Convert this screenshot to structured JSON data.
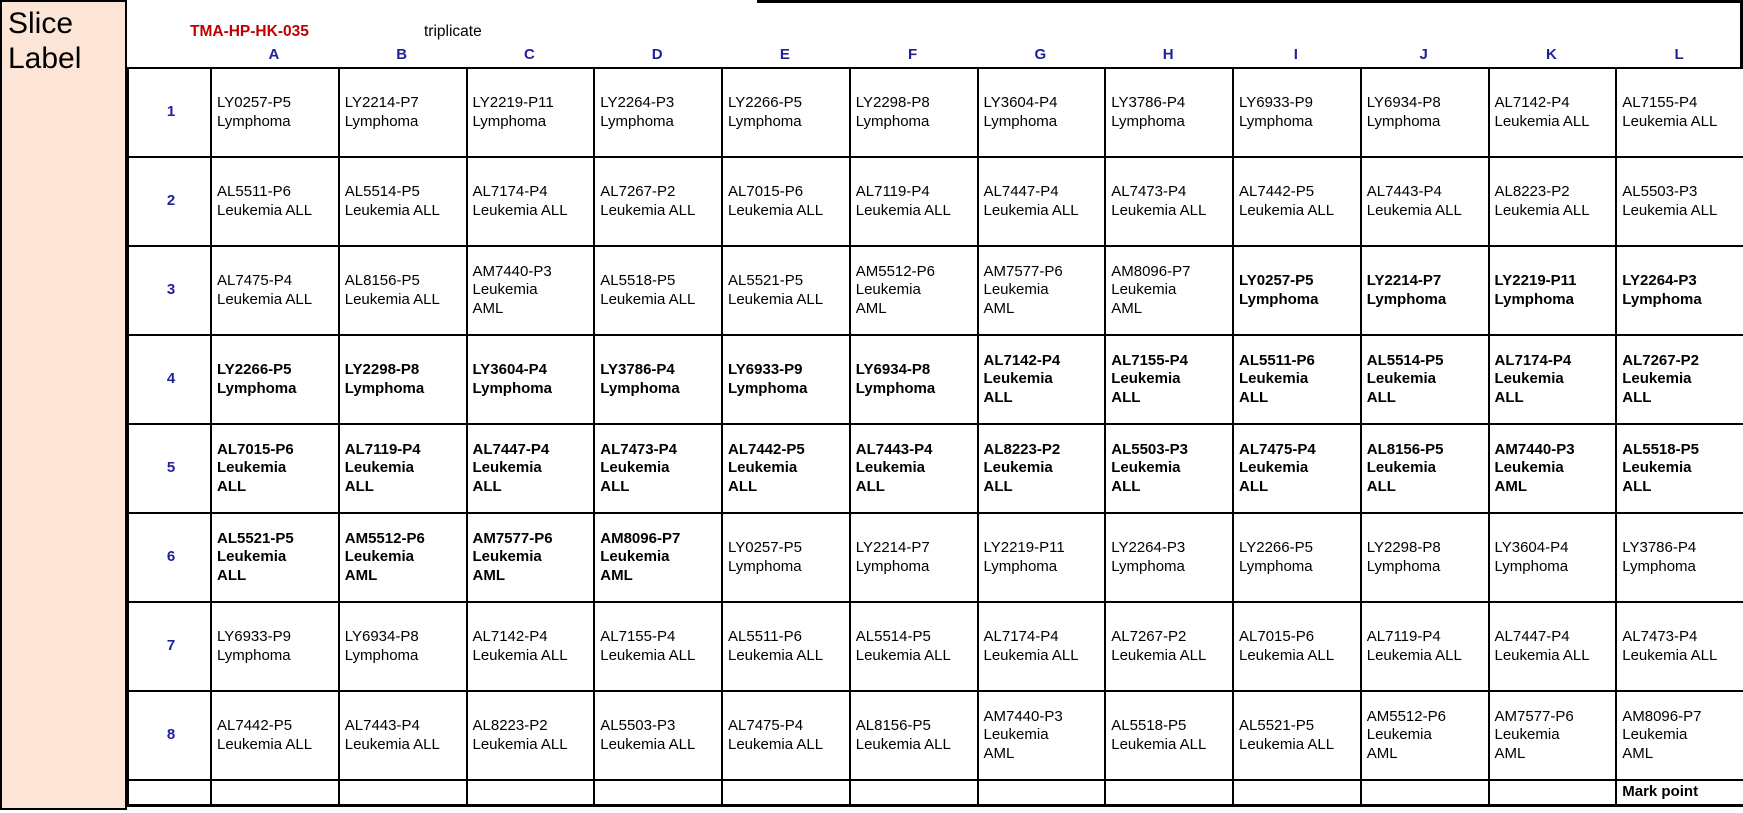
{
  "slice_label": "Slice Label",
  "header": {
    "tma_id": "TMA-HP-HK-035",
    "note": "triplicate",
    "columns": [
      "A",
      "B",
      "C",
      "D",
      "E",
      "F",
      "G",
      "H",
      "I",
      "J",
      "K",
      "L"
    ]
  },
  "footer": {
    "mark_point": "Mark point"
  },
  "colors": {
    "accent_red": "#c00000",
    "header_blue": "#21219c",
    "shaded_gray": "#d9d9d9",
    "slice_label_bg": "#fce4d6",
    "mark_point_bg": "#bdd7ee",
    "border_black": "#000000"
  },
  "grid": {
    "rows": [
      {
        "num": "1",
        "cells": [
          {
            "lines": [
              "LY0257-P5",
              "Lymphoma"
            ],
            "shaded": false
          },
          {
            "lines": [
              "LY2214-P7",
              "Lymphoma"
            ],
            "shaded": false
          },
          {
            "lines": [
              "LY2219-P11",
              "Lymphoma"
            ],
            "shaded": false
          },
          {
            "lines": [
              "LY2264-P3",
              "Lymphoma"
            ],
            "shaded": false
          },
          {
            "lines": [
              "LY2266-P5",
              "Lymphoma"
            ],
            "shaded": false
          },
          {
            "lines": [
              "LY2298-P8",
              "Lymphoma"
            ],
            "shaded": false
          },
          {
            "lines": [
              "LY3604-P4",
              "Lymphoma"
            ],
            "shaded": false
          },
          {
            "lines": [
              "LY3786-P4",
              "Lymphoma"
            ],
            "shaded": false
          },
          {
            "lines": [
              "LY6933-P9",
              "Lymphoma"
            ],
            "shaded": false
          },
          {
            "lines": [
              "LY6934-P8",
              "Lymphoma"
            ],
            "shaded": false
          },
          {
            "lines": [
              "AL7142-P4",
              "Leukemia ALL"
            ],
            "shaded": false
          },
          {
            "lines": [
              "AL7155-P4",
              "Leukemia ALL"
            ],
            "shaded": false
          }
        ]
      },
      {
        "num": "2",
        "cells": [
          {
            "lines": [
              "AL5511-P6",
              "Leukemia ALL"
            ],
            "shaded": false
          },
          {
            "lines": [
              "AL5514-P5",
              "Leukemia ALL"
            ],
            "shaded": false
          },
          {
            "lines": [
              "AL7174-P4",
              "Leukemia ALL"
            ],
            "shaded": false
          },
          {
            "lines": [
              "AL7267-P2",
              "Leukemia ALL"
            ],
            "shaded": false
          },
          {
            "lines": [
              "AL7015-P6",
              "Leukemia ALL"
            ],
            "shaded": false
          },
          {
            "lines": [
              "AL7119-P4",
              "Leukemia ALL"
            ],
            "shaded": false
          },
          {
            "lines": [
              "AL7447-P4",
              "Leukemia ALL"
            ],
            "shaded": false
          },
          {
            "lines": [
              "AL7473-P4",
              "Leukemia ALL"
            ],
            "shaded": false
          },
          {
            "lines": [
              "AL7442-P5",
              "Leukemia ALL"
            ],
            "shaded": false
          },
          {
            "lines": [
              "AL7443-P4",
              "Leukemia ALL"
            ],
            "shaded": false
          },
          {
            "lines": [
              "AL8223-P2",
              "Leukemia ALL"
            ],
            "shaded": false
          },
          {
            "lines": [
              "AL5503-P3",
              "Leukemia ALL"
            ],
            "shaded": false
          }
        ]
      },
      {
        "num": "3",
        "cells": [
          {
            "lines": [
              "AL7475-P4",
              "Leukemia ALL"
            ],
            "shaded": false
          },
          {
            "lines": [
              "AL8156-P5",
              "Leukemia ALL"
            ],
            "shaded": false
          },
          {
            "lines": [
              "AM7440-P3",
              "Leukemia",
              "AML"
            ],
            "shaded": false
          },
          {
            "lines": [
              "AL5518-P5",
              "Leukemia ALL"
            ],
            "shaded": false
          },
          {
            "lines": [
              "AL5521-P5",
              "Leukemia ALL"
            ],
            "shaded": false
          },
          {
            "lines": [
              "AM5512-P6",
              "Leukemia",
              "AML"
            ],
            "shaded": false
          },
          {
            "lines": [
              "AM7577-P6",
              "Leukemia",
              "AML"
            ],
            "shaded": false
          },
          {
            "lines": [
              "AM8096-P7",
              "Leukemia",
              "AML"
            ],
            "shaded": false
          },
          {
            "lines": [
              "LY0257-P5",
              "Lymphoma"
            ],
            "shaded": true
          },
          {
            "lines": [
              "LY2214-P7",
              "Lymphoma"
            ],
            "shaded": true
          },
          {
            "lines": [
              "LY2219-P11",
              "Lymphoma"
            ],
            "shaded": true
          },
          {
            "lines": [
              "LY2264-P3",
              "Lymphoma"
            ],
            "shaded": true
          }
        ]
      },
      {
        "num": "4",
        "cells": [
          {
            "lines": [
              "LY2266-P5",
              "Lymphoma"
            ],
            "shaded": true
          },
          {
            "lines": [
              "LY2298-P8",
              "Lymphoma"
            ],
            "shaded": true
          },
          {
            "lines": [
              "LY3604-P4",
              "Lymphoma"
            ],
            "shaded": true
          },
          {
            "lines": [
              "LY3786-P4",
              "Lymphoma"
            ],
            "shaded": true
          },
          {
            "lines": [
              "LY6933-P9",
              "Lymphoma"
            ],
            "shaded": true
          },
          {
            "lines": [
              "LY6934-P8",
              "Lymphoma"
            ],
            "shaded": true
          },
          {
            "lines": [
              "AL7142-P4",
              "Leukemia",
              "ALL"
            ],
            "shaded": true
          },
          {
            "lines": [
              "AL7155-P4",
              "Leukemia",
              "ALL"
            ],
            "shaded": true
          },
          {
            "lines": [
              "AL5511-P6",
              "Leukemia",
              "ALL"
            ],
            "shaded": true
          },
          {
            "lines": [
              "AL5514-P5",
              "Leukemia",
              "ALL"
            ],
            "shaded": true
          },
          {
            "lines": [
              "AL7174-P4",
              "Leukemia",
              "ALL"
            ],
            "shaded": true
          },
          {
            "lines": [
              "AL7267-P2",
              "Leukemia",
              "ALL"
            ],
            "shaded": true
          }
        ]
      },
      {
        "num": "5",
        "cells": [
          {
            "lines": [
              "AL7015-P6",
              "Leukemia",
              "ALL"
            ],
            "shaded": true
          },
          {
            "lines": [
              "AL7119-P4",
              "Leukemia",
              "ALL"
            ],
            "shaded": true
          },
          {
            "lines": [
              "AL7447-P4",
              "Leukemia",
              "ALL"
            ],
            "shaded": true
          },
          {
            "lines": [
              "AL7473-P4",
              "Leukemia",
              "ALL"
            ],
            "shaded": true
          },
          {
            "lines": [
              "AL7442-P5",
              "Leukemia",
              "ALL"
            ],
            "shaded": true
          },
          {
            "lines": [
              "AL7443-P4",
              "Leukemia",
              "ALL"
            ],
            "shaded": true
          },
          {
            "lines": [
              "AL8223-P2",
              "Leukemia",
              "ALL"
            ],
            "shaded": true
          },
          {
            "lines": [
              "AL5503-P3",
              "Leukemia",
              "ALL"
            ],
            "shaded": true
          },
          {
            "lines": [
              "AL7475-P4",
              "Leukemia",
              "ALL"
            ],
            "shaded": true
          },
          {
            "lines": [
              "AL8156-P5",
              "Leukemia",
              "ALL"
            ],
            "shaded": true
          },
          {
            "lines": [
              "AM7440-P3",
              "Leukemia",
              "AML"
            ],
            "shaded": true
          },
          {
            "lines": [
              "AL5518-P5",
              "Leukemia",
              "ALL"
            ],
            "shaded": true
          }
        ]
      },
      {
        "num": "6",
        "cells": [
          {
            "lines": [
              "AL5521-P5",
              "Leukemia",
              "ALL"
            ],
            "shaded": true
          },
          {
            "lines": [
              "AM5512-P6",
              "Leukemia",
              "AML"
            ],
            "shaded": true
          },
          {
            "lines": [
              "AM7577-P6",
              "Leukemia",
              "AML"
            ],
            "shaded": true
          },
          {
            "lines": [
              "AM8096-P7",
              "Leukemia",
              "AML"
            ],
            "shaded": true
          },
          {
            "lines": [
              "LY0257-P5",
              "Lymphoma"
            ],
            "shaded": false
          },
          {
            "lines": [
              "LY2214-P7",
              "Lymphoma"
            ],
            "shaded": false
          },
          {
            "lines": [
              "LY2219-P11",
              "Lymphoma"
            ],
            "shaded": false
          },
          {
            "lines": [
              "LY2264-P3",
              "Lymphoma"
            ],
            "shaded": false
          },
          {
            "lines": [
              "LY2266-P5",
              "Lymphoma"
            ],
            "shaded": false
          },
          {
            "lines": [
              "LY2298-P8",
              "Lymphoma"
            ],
            "shaded": false
          },
          {
            "lines": [
              "LY3604-P4",
              "Lymphoma"
            ],
            "shaded": false
          },
          {
            "lines": [
              "LY3786-P4",
              "Lymphoma"
            ],
            "shaded": false
          }
        ]
      },
      {
        "num": "7",
        "cells": [
          {
            "lines": [
              "LY6933-P9",
              "Lymphoma"
            ],
            "shaded": false
          },
          {
            "lines": [
              "LY6934-P8",
              "Lymphoma"
            ],
            "shaded": false
          },
          {
            "lines": [
              "AL7142-P4",
              "Leukemia ALL"
            ],
            "shaded": false
          },
          {
            "lines": [
              "AL7155-P4",
              "Leukemia ALL"
            ],
            "shaded": false
          },
          {
            "lines": [
              "AL5511-P6",
              "Leukemia ALL"
            ],
            "shaded": false
          },
          {
            "lines": [
              "AL5514-P5",
              "Leukemia ALL"
            ],
            "shaded": false
          },
          {
            "lines": [
              "AL7174-P4",
              "Leukemia ALL"
            ],
            "shaded": false
          },
          {
            "lines": [
              "AL7267-P2",
              "Leukemia ALL"
            ],
            "shaded": false
          },
          {
            "lines": [
              "AL7015-P6",
              "Leukemia ALL"
            ],
            "shaded": false
          },
          {
            "lines": [
              "AL7119-P4",
              "Leukemia ALL"
            ],
            "shaded": false
          },
          {
            "lines": [
              "AL7447-P4",
              "Leukemia ALL"
            ],
            "shaded": false
          },
          {
            "lines": [
              "AL7473-P4",
              "Leukemia ALL"
            ],
            "shaded": false
          }
        ]
      },
      {
        "num": "8",
        "cells": [
          {
            "lines": [
              "AL7442-P5",
              "Leukemia ALL"
            ],
            "shaded": false
          },
          {
            "lines": [
              "AL7443-P4",
              "Leukemia ALL"
            ],
            "shaded": false
          },
          {
            "lines": [
              "AL8223-P2",
              "Leukemia ALL"
            ],
            "shaded": false
          },
          {
            "lines": [
              "AL5503-P3",
              "Leukemia ALL"
            ],
            "shaded": false
          },
          {
            "lines": [
              "AL7475-P4",
              "Leukemia ALL"
            ],
            "shaded": false
          },
          {
            "lines": [
              "AL8156-P5",
              "Leukemia ALL"
            ],
            "shaded": false
          },
          {
            "lines": [
              "AM7440-P3",
              "Leukemia",
              "AML"
            ],
            "shaded": false
          },
          {
            "lines": [
              "AL5518-P5",
              "Leukemia ALL"
            ],
            "shaded": false
          },
          {
            "lines": [
              "AL5521-P5",
              "Leukemia ALL"
            ],
            "shaded": false
          },
          {
            "lines": [
              "AM5512-P6",
              "Leukemia",
              "AML"
            ],
            "shaded": false
          },
          {
            "lines": [
              "AM7577-P6",
              "Leukemia",
              "AML"
            ],
            "shaded": false
          },
          {
            "lines": [
              "AM8096-P7",
              "Leukemia",
              "AML"
            ],
            "shaded": false
          }
        ]
      }
    ]
  }
}
